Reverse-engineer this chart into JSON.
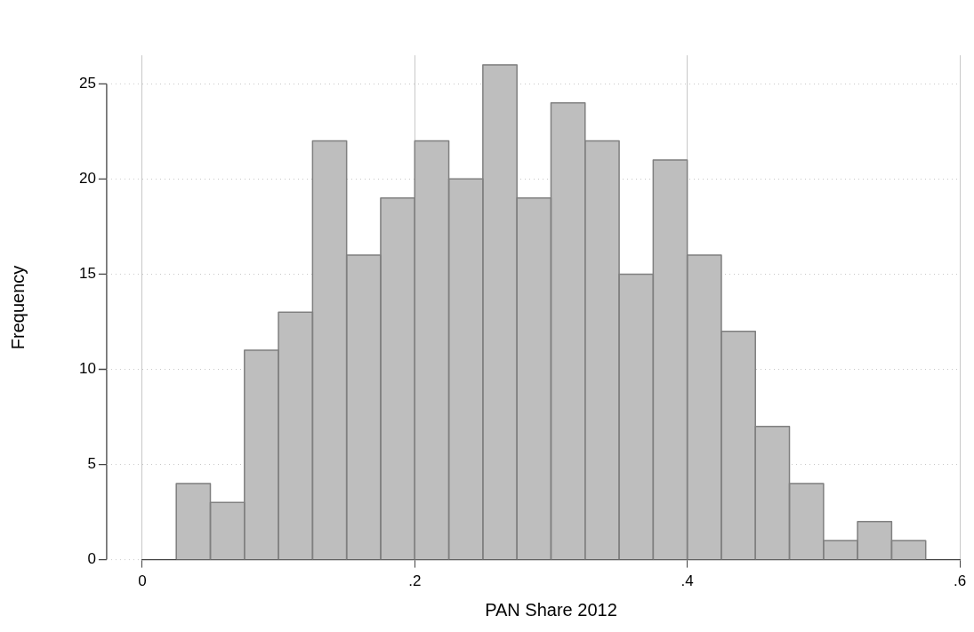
{
  "chart_data": {
    "type": "histogram",
    "xlabel": "PAN Share 2012",
    "ylabel": "Frequency",
    "bins": [
      0.025,
      0.05,
      0.075,
      0.1,
      0.125,
      0.15,
      0.175,
      0.2,
      0.225,
      0.25,
      0.275,
      0.3,
      0.325,
      0.35,
      0.375,
      0.4,
      0.425,
      0.45,
      0.475,
      0.5,
      0.525,
      0.55,
      0.575
    ],
    "values": [
      4,
      3,
      11,
      13,
      22,
      16,
      19,
      22,
      20,
      26,
      19,
      24,
      22,
      15,
      21,
      16,
      12,
      7,
      4,
      1,
      2,
      1
    ],
    "color": "#bebebe",
    "xlim": [
      0,
      0.6
    ],
    "xticks": [
      0,
      {
        "value": 0.2,
        "label": ".2"
      },
      {
        "value": 0.4,
        "label": ".4"
      },
      {
        "value": 0.6,
        "label": ".6"
      }
    ],
    "ylim": [
      0,
      26.5
    ],
    "yticks": [
      0,
      5,
      10,
      15,
      20,
      25
    ],
    "grid": true,
    "legend": false
  }
}
